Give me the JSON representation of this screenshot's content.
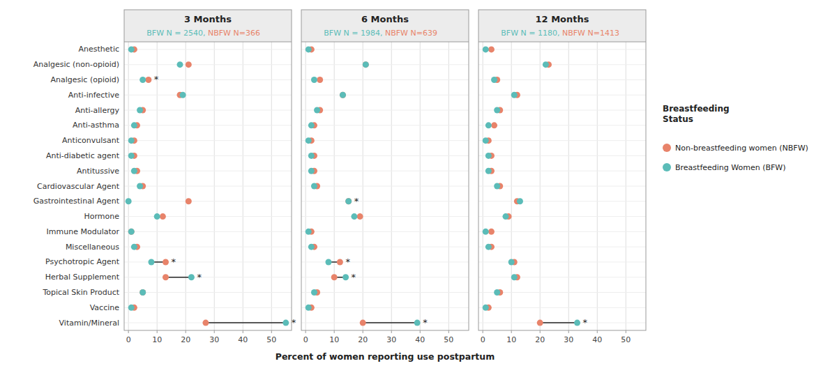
{
  "chart_data": [
    {
      "type": "dumbbell",
      "title": "3 Months",
      "subtitle": [
        "BFW N = 2540, ",
        "NBFW N=366"
      ],
      "categories": [
        "Anesthetic",
        "Analgesic (non-opioid)",
        "Analgesic (opioid)",
        "Anti-infective",
        "Anti-allergy",
        "Anti-asthma",
        "Anticonvulsant",
        "Anti-diabetic agent",
        "Antitussive",
        "Cardiovascular Agent",
        "Gastrointestinal Agent",
        "Hormone",
        "Immune Modulator",
        "Miscellaneous",
        "Psychotropic Agent",
        "Herbal Supplement",
        "Topical Skin Product",
        "Vaccine",
        "Vitamin/Mineral"
      ],
      "series": [
        {
          "name": "Non-breastfeeding women (NBFW)",
          "color": "#E8836A",
          "values": [
            2,
            21,
            7,
            18,
            5,
            3,
            2,
            2,
            3,
            5,
            21,
            12,
            1,
            3,
            13,
            13,
            5,
            2,
            27
          ]
        },
        {
          "name": "Breastfeeding Women (BFW)",
          "color": "#5BBCB8",
          "values": [
            1,
            18,
            5,
            19,
            4,
            2,
            1,
            1,
            2,
            4,
            0,
            10,
            1,
            2,
            8,
            22,
            5,
            1,
            55
          ]
        }
      ],
      "significant": [
        false,
        false,
        true,
        false,
        false,
        false,
        false,
        false,
        false,
        false,
        false,
        false,
        false,
        false,
        true,
        true,
        false,
        false,
        true
      ],
      "significance_mark": "*",
      "xlim": [
        -1.5,
        57
      ],
      "xticks": [
        0,
        10,
        20,
        30,
        40,
        50
      ],
      "grid": true,
      "legend": "right",
      "legend_title": "Breastfeeding\nStatus"
    },
    {
      "type": "dumbbell",
      "title": "6 Months",
      "subtitle": [
        "BFW N = 1984, ",
        "NBFW N=639"
      ],
      "categories": [
        "Anesthetic",
        "Analgesic (non-opioid)",
        "Analgesic (opioid)",
        "Anti-infective",
        "Anti-allergy",
        "Anti-asthma",
        "Anticonvulsant",
        "Anti-diabetic agent",
        "Antitussive",
        "Cardiovascular Agent",
        "Gastrointestinal Agent",
        "Hormone",
        "Immune Modulator",
        "Miscellaneous",
        "Psychotropic Agent",
        "Herbal Supplement",
        "Topical Skin Product",
        "Vaccine",
        "Vitamin/Mineral"
      ],
      "series": [
        {
          "name": "Non-breastfeeding women (NBFW)",
          "color": "#E8836A",
          "values": [
            2,
            21,
            5,
            13,
            5,
            3,
            2,
            3,
            3,
            4,
            15,
            19,
            2,
            3,
            12,
            10,
            4,
            2,
            20
          ]
        },
        {
          "name": "Breastfeeding Women (BFW)",
          "color": "#5BBCB8",
          "values": [
            1,
            21,
            3,
            13,
            4,
            2,
            1,
            2,
            2,
            3,
            15,
            17,
            1,
            2,
            8,
            14,
            3,
            1,
            39
          ]
        }
      ],
      "significant": [
        false,
        false,
        false,
        false,
        false,
        false,
        false,
        false,
        false,
        false,
        true,
        false,
        false,
        false,
        true,
        true,
        false,
        false,
        true
      ],
      "significance_mark": "*",
      "xlim": [
        -1.5,
        57
      ],
      "xticks": [
        0,
        10,
        20,
        30,
        40,
        50
      ],
      "grid": true,
      "tick_labels": "x",
      "xlabel": "Percent of women reporting use postpartum"
    },
    {
      "type": "dumbbell",
      "title": "12 Months",
      "subtitle": [
        "BFW N = 1180, ",
        "NBFW N=1413"
      ],
      "categories": [
        "Anesthetic",
        "Analgesic (non-opioid)",
        "Analgesic (opioid)",
        "Anti-infective",
        "Anti-allergy",
        "Anti-asthma",
        "Anticonvulsant",
        "Anti-diabetic agent",
        "Antitussive",
        "Cardiovascular Agent",
        "Gastrointestinal Agent",
        "Hormone",
        "Immune Modulator",
        "Miscellaneous",
        "Psychotropic Agent",
        "Herbal Supplement",
        "Topical Skin Product",
        "Vaccine",
        "Vitamin/Mineral"
      ],
      "series": [
        {
          "name": "Non-breastfeeding women (NBFW)",
          "color": "#E8836A",
          "values": [
            3,
            23,
            5,
            12,
            6,
            4,
            2,
            3,
            3,
            6,
            12,
            9,
            3,
            3,
            11,
            12,
            6,
            2,
            20
          ]
        },
        {
          "name": "Breastfeeding Women (BFW)",
          "color": "#5BBCB8",
          "values": [
            1,
            22,
            4,
            11,
            5,
            2,
            1,
            2,
            2,
            5,
            13,
            8,
            1,
            2,
            10,
            11,
            5,
            1,
            33
          ]
        }
      ],
      "significant": [
        false,
        false,
        false,
        false,
        false,
        false,
        false,
        false,
        false,
        false,
        false,
        false,
        false,
        false,
        false,
        false,
        false,
        false,
        true
      ],
      "significance_mark": "*",
      "xlim": [
        -1.5,
        57
      ],
      "xticks": [
        0,
        10,
        20,
        30,
        40,
        50
      ],
      "grid": true,
      "tick_labels": "x"
    }
  ]
}
